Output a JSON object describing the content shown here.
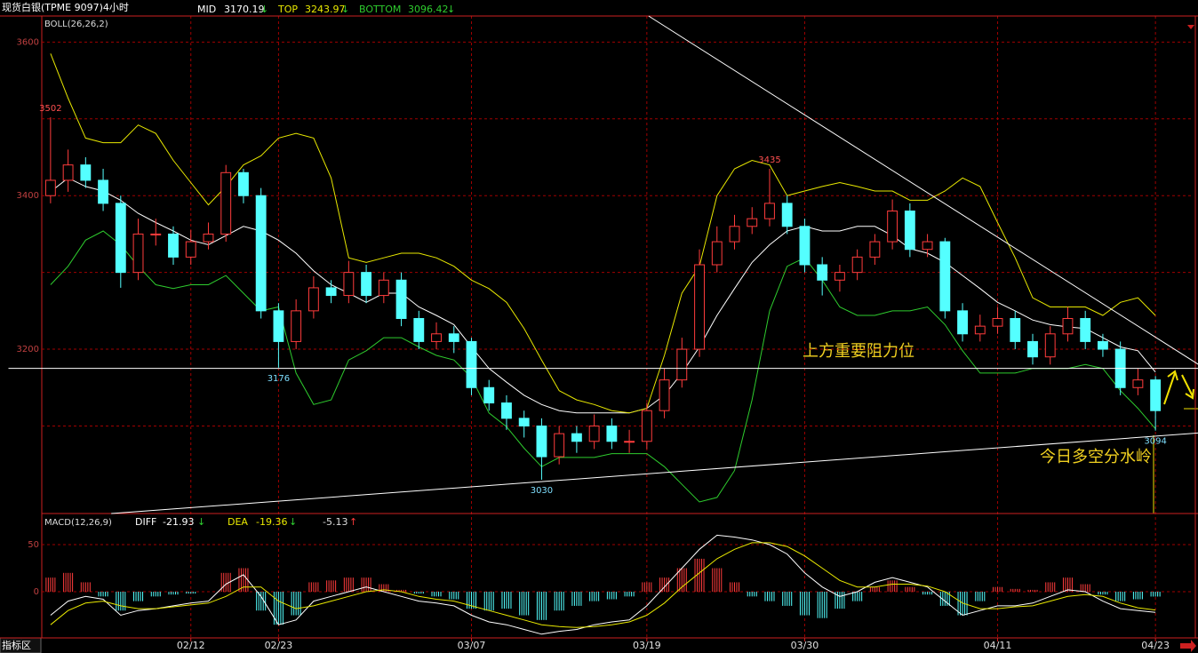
{
  "chart_data": [
    {
      "type": "candlestick",
      "title": "现货白银(TPME 9097)4小时",
      "indicator": "BOLL(26,26,2)",
      "categories": [
        null,
        null,
        null,
        null,
        null,
        null,
        null,
        null,
        "02/12",
        null,
        null,
        null,
        null,
        "02/23",
        null,
        null,
        null,
        null,
        null,
        null,
        null,
        null,
        null,
        null,
        "03/07",
        null,
        null,
        null,
        null,
        null,
        null,
        null,
        null,
        null,
        "03/19",
        null,
        null,
        null,
        null,
        null,
        null,
        null,
        null,
        "03/30",
        null,
        null,
        null,
        null,
        null,
        null,
        null,
        null,
        null,
        null,
        "04/11",
        null,
        null,
        null,
        null,
        null,
        null,
        null,
        null,
        "04/23"
      ],
      "open": [
        3400,
        3420,
        3440,
        3420,
        3390,
        3300,
        3350,
        3350,
        3320,
        3340,
        3350,
        3430,
        3400,
        3250,
        3210,
        3250,
        3280,
        3270,
        3300,
        3270,
        3290,
        3240,
        3210,
        3220,
        3210,
        3150,
        3130,
        3110,
        3100,
        3060,
        3090,
        3080,
        3100,
        3080,
        3080,
        3120,
        3160,
        3200,
        3310,
        3340,
        3360,
        3370,
        3390,
        3360,
        3310,
        3290,
        3300,
        3320,
        3340,
        3380,
        3330,
        3340,
        3250,
        3220,
        3230,
        3240,
        3210,
        3190,
        3220,
        3240,
        3210,
        3200,
        3150,
        3160
      ],
      "high": [
        3502,
        3460,
        3450,
        3435,
        3400,
        3370,
        3370,
        3360,
        3355,
        3365,
        3440,
        3435,
        3410,
        3260,
        3265,
        3295,
        3290,
        3315,
        3310,
        3300,
        3300,
        3250,
        3235,
        3230,
        3215,
        3160,
        3140,
        3120,
        3110,
        3100,
        3100,
        3115,
        3110,
        3095,
        3130,
        3175,
        3215,
        3330,
        3360,
        3375,
        3385,
        3435,
        3400,
        3370,
        3320,
        3310,
        3330,
        3350,
        3395,
        3390,
        3350,
        3345,
        3260,
        3245,
        3255,
        3250,
        3220,
        3230,
        3255,
        3250,
        3220,
        3210,
        3175,
        3165
      ],
      "low": [
        3390,
        3405,
        3410,
        3380,
        3280,
        3290,
        3335,
        3310,
        3310,
        3330,
        3340,
        3390,
        3240,
        3176,
        3200,
        3240,
        3260,
        3260,
        3260,
        3260,
        3230,
        3200,
        3200,
        3195,
        3140,
        3120,
        3095,
        3085,
        3030,
        3050,
        3065,
        3070,
        3070,
        3065,
        3070,
        3110,
        3150,
        3190,
        3300,
        3330,
        3350,
        3360,
        3350,
        3300,
        3270,
        3275,
        3290,
        3310,
        3330,
        3320,
        3320,
        3240,
        3210,
        3210,
        3220,
        3200,
        3180,
        3180,
        3210,
        3200,
        3190,
        3140,
        3140,
        3094
      ],
      "close": [
        3420,
        3440,
        3420,
        3390,
        3300,
        3350,
        3350,
        3320,
        3340,
        3350,
        3430,
        3400,
        3250,
        3210,
        3250,
        3280,
        3270,
        3300,
        3270,
        3290,
        3240,
        3210,
        3220,
        3210,
        3150,
        3130,
        3110,
        3100,
        3060,
        3090,
        3080,
        3100,
        3080,
        3080,
        3120,
        3160,
        3200,
        3310,
        3340,
        3360,
        3370,
        3390,
        3360,
        3310,
        3290,
        3300,
        3320,
        3340,
        3380,
        3330,
        3340,
        3250,
        3220,
        3230,
        3240,
        3210,
        3190,
        3220,
        3240,
        3210,
        3200,
        3150,
        3160,
        3120
      ],
      "up_color": "#ff3c3c",
      "down_color": "#54ffff",
      "series": [
        {
          "name": "MID",
          "color": "#ffffff",
          "trend": "↓",
          "values": [
            3405,
            3423,
            3412,
            3406,
            3394,
            3377,
            3365,
            3354,
            3342,
            3336,
            3348,
            3360,
            3354,
            3342,
            3325,
            3302,
            3284,
            3273,
            3261,
            3273,
            3273,
            3255,
            3244,
            3232,
            3203,
            3175,
            3157,
            3140,
            3128,
            3120,
            3117,
            3117,
            3117,
            3117,
            3123,
            3140,
            3169,
            3203,
            3244,
            3279,
            3313,
            3336,
            3354,
            3360,
            3354,
            3354,
            3360,
            3360,
            3348,
            3331,
            3325,
            3313,
            3296,
            3279,
            3261,
            3250,
            3238,
            3232,
            3229,
            3227,
            3215,
            3203,
            3198,
            3170.19
          ]
        },
        {
          "name": "TOP",
          "color": "#e8e800",
          "trend": "↓",
          "values": [
            3585,
            3527,
            3475,
            3469,
            3469,
            3492,
            3481,
            3446,
            3417,
            3388,
            3412,
            3440,
            3452,
            3475,
            3481,
            3475,
            3423,
            3319,
            3313,
            3319,
            3325,
            3325,
            3319,
            3308,
            3290,
            3279,
            3261,
            3227,
            3186,
            3146,
            3134,
            3128,
            3120,
            3117,
            3123,
            3192,
            3273,
            3308,
            3400,
            3435,
            3446,
            3440,
            3400,
            3406,
            3412,
            3417,
            3412,
            3406,
            3406,
            3394,
            3394,
            3406,
            3423,
            3412,
            3365,
            3319,
            3267,
            3255,
            3255,
            3255,
            3244,
            3261,
            3267,
            3243.97
          ]
        },
        {
          "name": "BOTTOM",
          "color": "#2ecc2e",
          "trend": "↓",
          "values": [
            3284,
            3308,
            3342,
            3354,
            3336,
            3308,
            3284,
            3279,
            3284,
            3284,
            3296,
            3273,
            3250,
            3255,
            3169,
            3128,
            3134,
            3186,
            3198,
            3215,
            3215,
            3203,
            3192,
            3186,
            3163,
            3117,
            3099,
            3071,
            3047,
            3059,
            3059,
            3059,
            3064,
            3064,
            3064,
            3047,
            3024,
            3001,
            3007,
            3042,
            3134,
            3250,
            3308,
            3319,
            3290,
            3255,
            3244,
            3244,
            3250,
            3250,
            3255,
            3232,
            3198,
            3169,
            3169,
            3169,
            3175,
            3175,
            3175,
            3180,
            3175,
            3146,
            3123,
            3096.42
          ]
        }
      ],
      "ylim": [
        2986,
        3634
      ],
      "yticks": [
        3200,
        3400,
        3600
      ],
      "yticks_minor": [
        3100,
        3300,
        3500
      ],
      "grid": true,
      "lines": [
        {
          "x": [
            34.1,
            66.5
          ],
          "y": [
            3634,
            3165
          ],
          "color": "#ffffff"
        },
        {
          "x": [
            3.46,
            65.5
          ],
          "y": [
            2986,
            3091
          ],
          "color": "#ffffff"
        },
        {
          "x": [
            -2.4,
            66.9
          ],
          "y": [
            3175,
            3175
          ],
          "color": "#ffffff"
        }
      ],
      "annotations": [
        "上方重要阻力位",
        "今日多空分水岭"
      ]
    },
    {
      "type": "macd",
      "title": "MACD(12,26,9)",
      "series": [
        {
          "name": "DIFF",
          "color": "#ffffff",
          "trend": "↓",
          "values": [
            -25,
            -10,
            -5,
            -8,
            -25,
            -20,
            -18,
            -15,
            -12,
            -10,
            8,
            18,
            -5,
            -35,
            -30,
            -10,
            -5,
            0,
            5,
            0,
            -5,
            -10,
            -12,
            -15,
            -25,
            -32,
            -35,
            -40,
            -45,
            -42,
            -40,
            -35,
            -32,
            -30,
            -15,
            5,
            25,
            45,
            60,
            58,
            55,
            50,
            40,
            20,
            5,
            -5,
            0,
            10,
            15,
            10,
            5,
            -10,
            -25,
            -20,
            -15,
            -15,
            -12,
            -5,
            2,
            0,
            -10,
            -18,
            -20,
            -21.93
          ]
        },
        {
          "name": "DEA",
          "color": "#e8e800",
          "trend": "↓",
          "values": [
            -35,
            -20,
            -12,
            -10,
            -15,
            -18,
            -18,
            -16,
            -14,
            -12,
            -5,
            5,
            5,
            -10,
            -18,
            -15,
            -10,
            -5,
            0,
            2,
            0,
            -5,
            -8,
            -10,
            -15,
            -20,
            -25,
            -30,
            -35,
            -37,
            -38,
            -37,
            -35,
            -32,
            -25,
            -12,
            5,
            20,
            35,
            45,
            52,
            52,
            48,
            38,
            25,
            12,
            5,
            5,
            8,
            8,
            6,
            0,
            -12,
            -18,
            -18,
            -16,
            -15,
            -10,
            -5,
            -3,
            -5,
            -12,
            -17,
            -19.36
          ]
        }
      ],
      "histogram": {
        "trend": "↑",
        "up_color": "#ff3c3c",
        "down_color": "#54ffff",
        "values": [
          15,
          20,
          10,
          -5,
          -20,
          -10,
          -5,
          -3,
          -2,
          0,
          20,
          25,
          -20,
          -35,
          -25,
          10,
          12,
          15,
          15,
          8,
          2,
          -2,
          -5,
          -8,
          -18,
          -20,
          -18,
          -25,
          -30,
          -20,
          -15,
          -10,
          -8,
          -5,
          10,
          15,
          25,
          35,
          25,
          10,
          -5,
          -10,
          -15,
          -25,
          -28,
          -18,
          -10,
          5,
          12,
          5,
          -3,
          -15,
          -25,
          -10,
          5,
          3,
          2,
          10,
          15,
          8,
          -3,
          -10,
          -8,
          -5.13
        ]
      },
      "ylim": [
        -49,
        83
      ],
      "yticks": [
        0,
        50
      ],
      "grid": true
    }
  ],
  "status_bar": {
    "label": "指标区"
  }
}
